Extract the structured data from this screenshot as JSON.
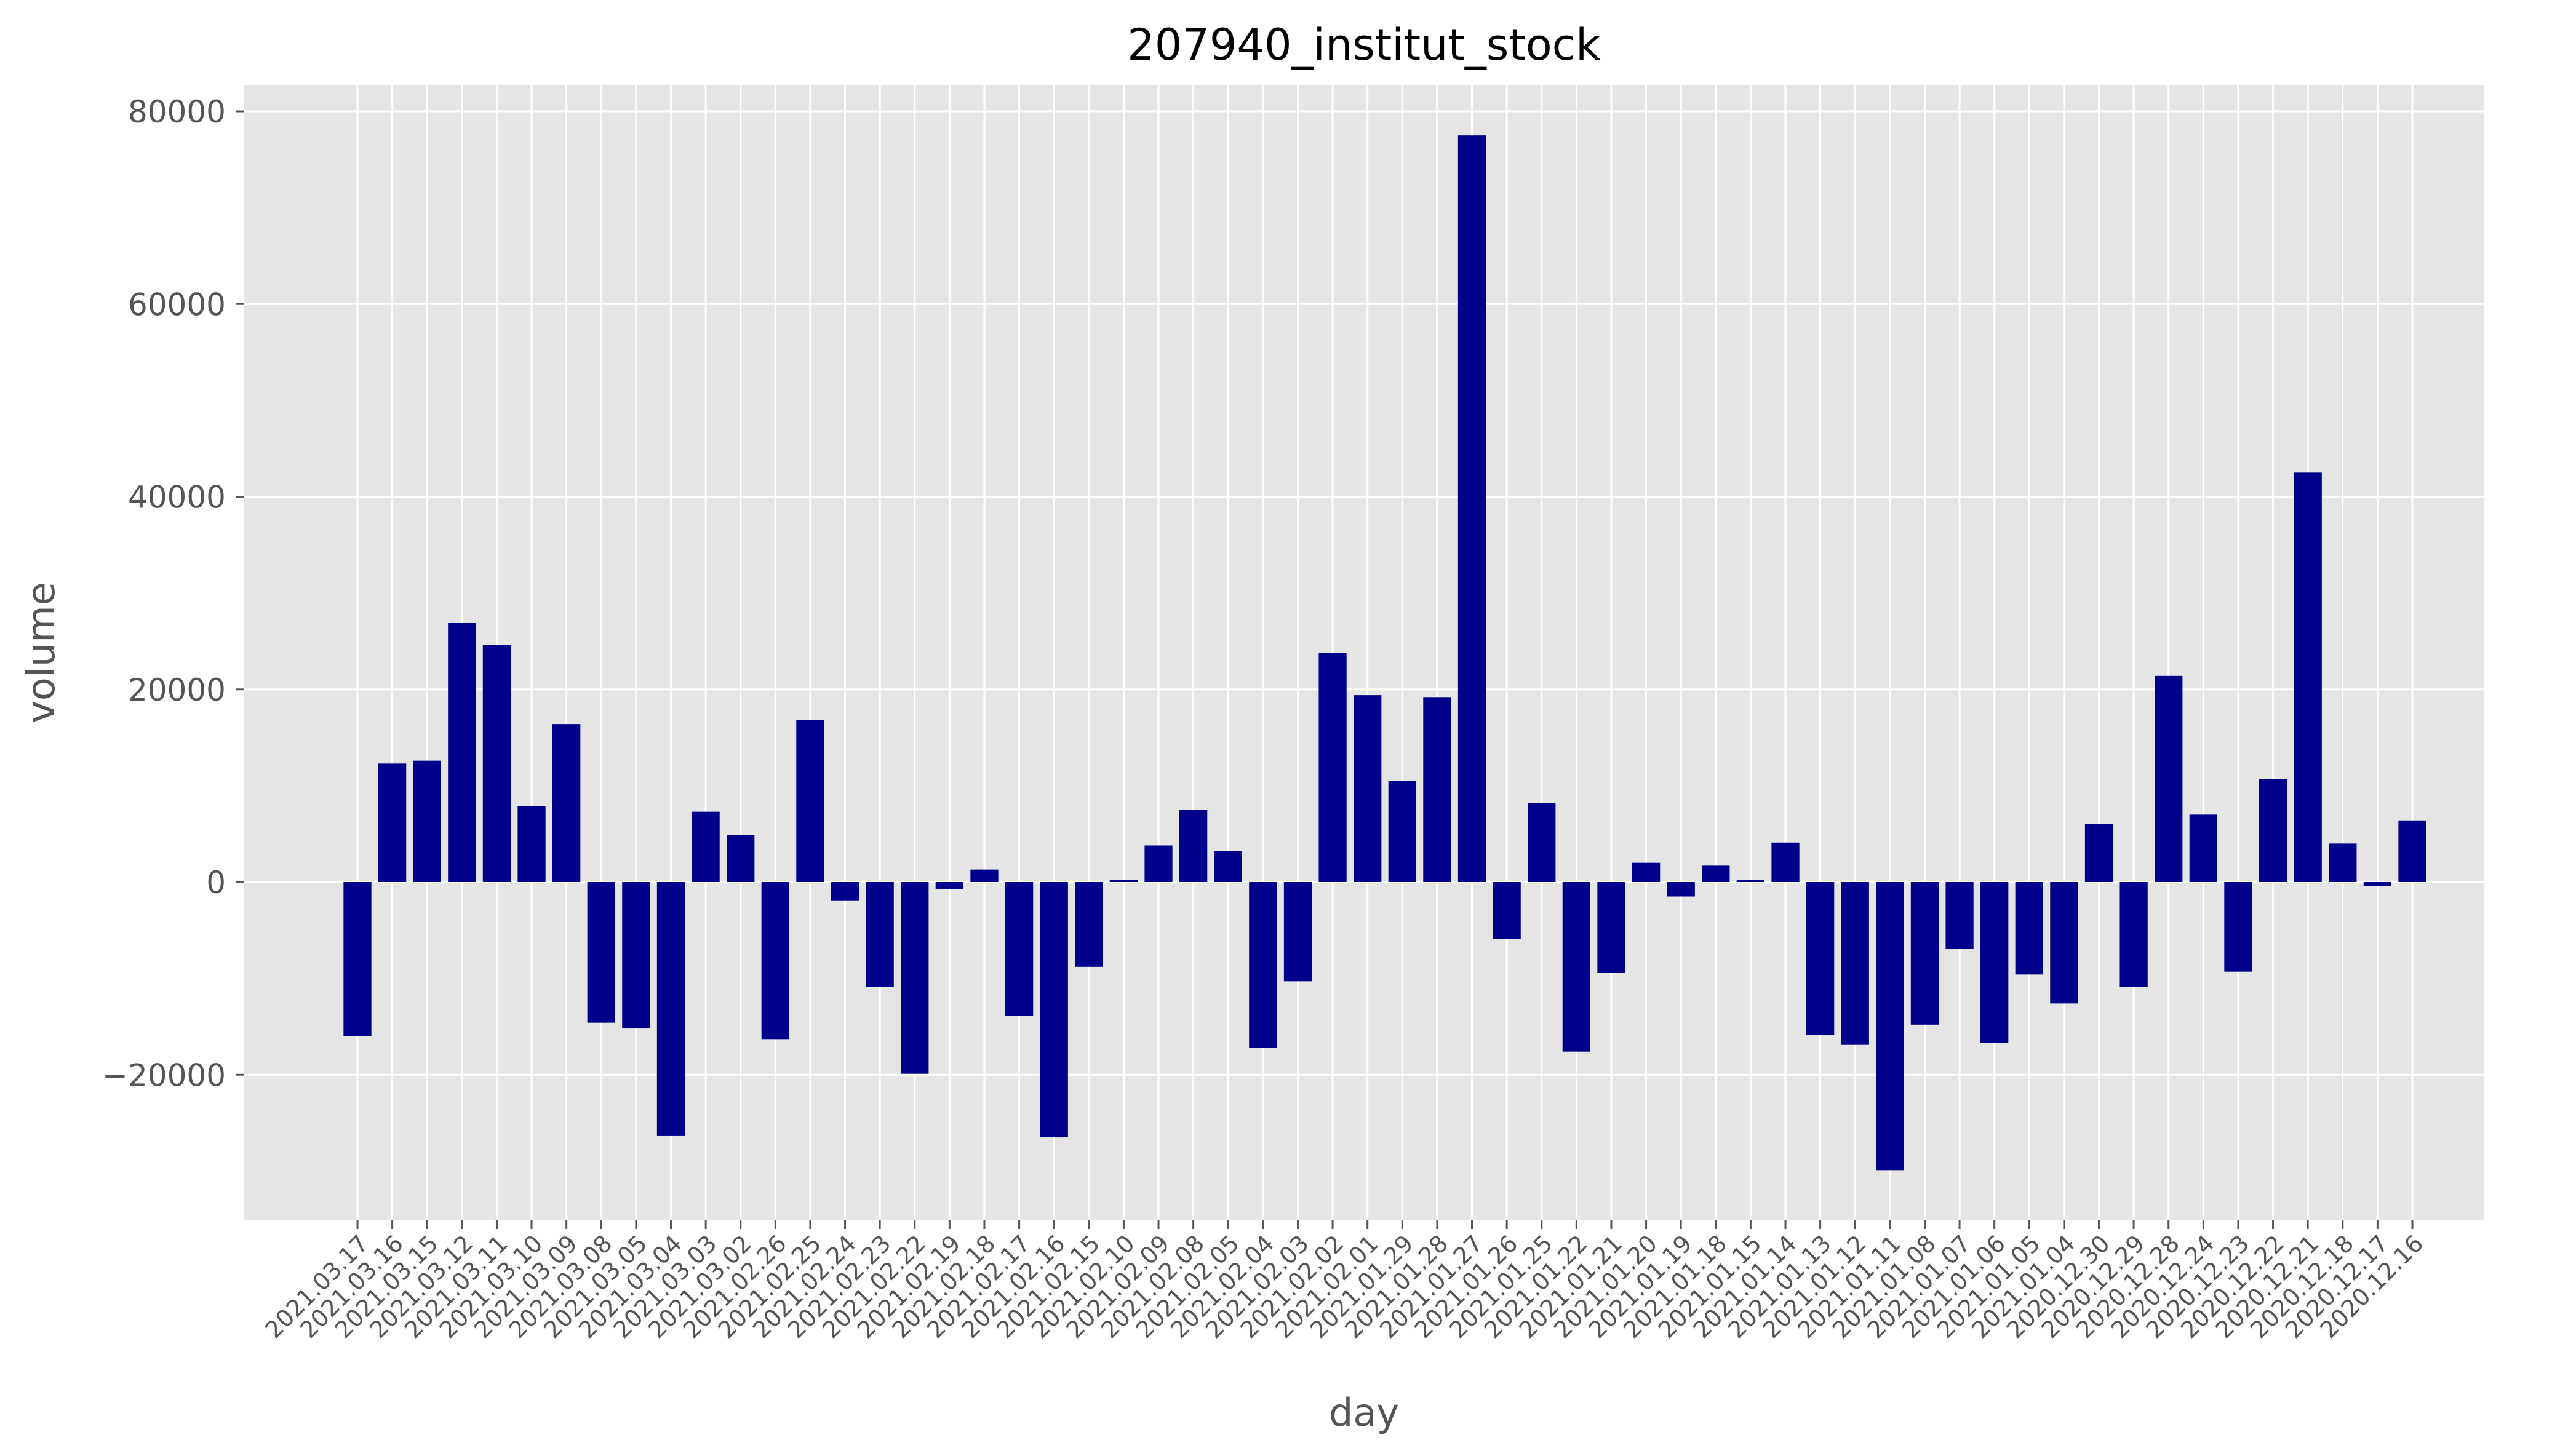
{
  "chart_data": {
    "type": "bar",
    "title": "207940_institut_stock",
    "xlabel": "day",
    "ylabel": "volume",
    "ylim": [
      -35000,
      82000
    ],
    "yticks": [
      -20000,
      0,
      20000,
      40000,
      60000,
      80000
    ],
    "ytick_labels": [
      "−20000",
      "0",
      "20000",
      "40000",
      "60000",
      "80000"
    ],
    "grid": true,
    "bar_color": "#00008b",
    "background_color": "#e5e5e5",
    "grid_color": "#ffffff",
    "categories": [
      "2021.03.17",
      "2021.03.16",
      "2021.03.15",
      "2021.03.12",
      "2021.03.11",
      "2021.03.10",
      "2021.03.09",
      "2021.03.08",
      "2021.03.05",
      "2021.03.04",
      "2021.03.03",
      "2021.03.02",
      "2021.02.26",
      "2021.02.25",
      "2021.02.24",
      "2021.02.23",
      "2021.02.22",
      "2021.02.19",
      "2021.02.18",
      "2021.02.17",
      "2021.02.16",
      "2021.02.15",
      "2021.02.10",
      "2021.02.09",
      "2021.02.08",
      "2021.02.05",
      "2021.02.04",
      "2021.02.03",
      "2021.02.02",
      "2021.02.01",
      "2021.01.29",
      "2021.01.28",
      "2021.01.27",
      "2021.01.26",
      "2021.01.25",
      "2021.01.22",
      "2021.01.21",
      "2021.01.20",
      "2021.01.19",
      "2021.01.18",
      "2021.01.15",
      "2021.01.14",
      "2021.01.13",
      "2021.01.12",
      "2021.01.11",
      "2021.01.08",
      "2021.01.07",
      "2021.01.06",
      "2021.01.05",
      "2021.01.04",
      "2020.12.30",
      "2020.12.29",
      "2020.12.28",
      "2020.12.24",
      "2020.12.23",
      "2020.12.22",
      "2020.12.21",
      "2020.12.18",
      "2020.12.17",
      "2020.12.16"
    ],
    "values": [
      -16000,
      12300,
      12600,
      26900,
      24600,
      7900,
      16400,
      -14600,
      -15200,
      -26300,
      7300,
      4900,
      -16300,
      16800,
      -1900,
      -10900,
      -19900,
      -700,
      1300,
      -13900,
      -26500,
      -8800,
      200,
      3800,
      7500,
      3200,
      -17200,
      -10300,
      23800,
      19400,
      10500,
      19200,
      77500,
      -5900,
      8200,
      -17600,
      -9400,
      2000,
      -1500,
      1700,
      200,
      4100,
      -15900,
      -16900,
      -29900,
      -14800,
      -6900,
      -16700,
      -9600,
      -12600,
      6000,
      -10900,
      21400,
      7000,
      -9300,
      10700,
      42500,
      4000,
      -400,
      6400
    ]
  }
}
